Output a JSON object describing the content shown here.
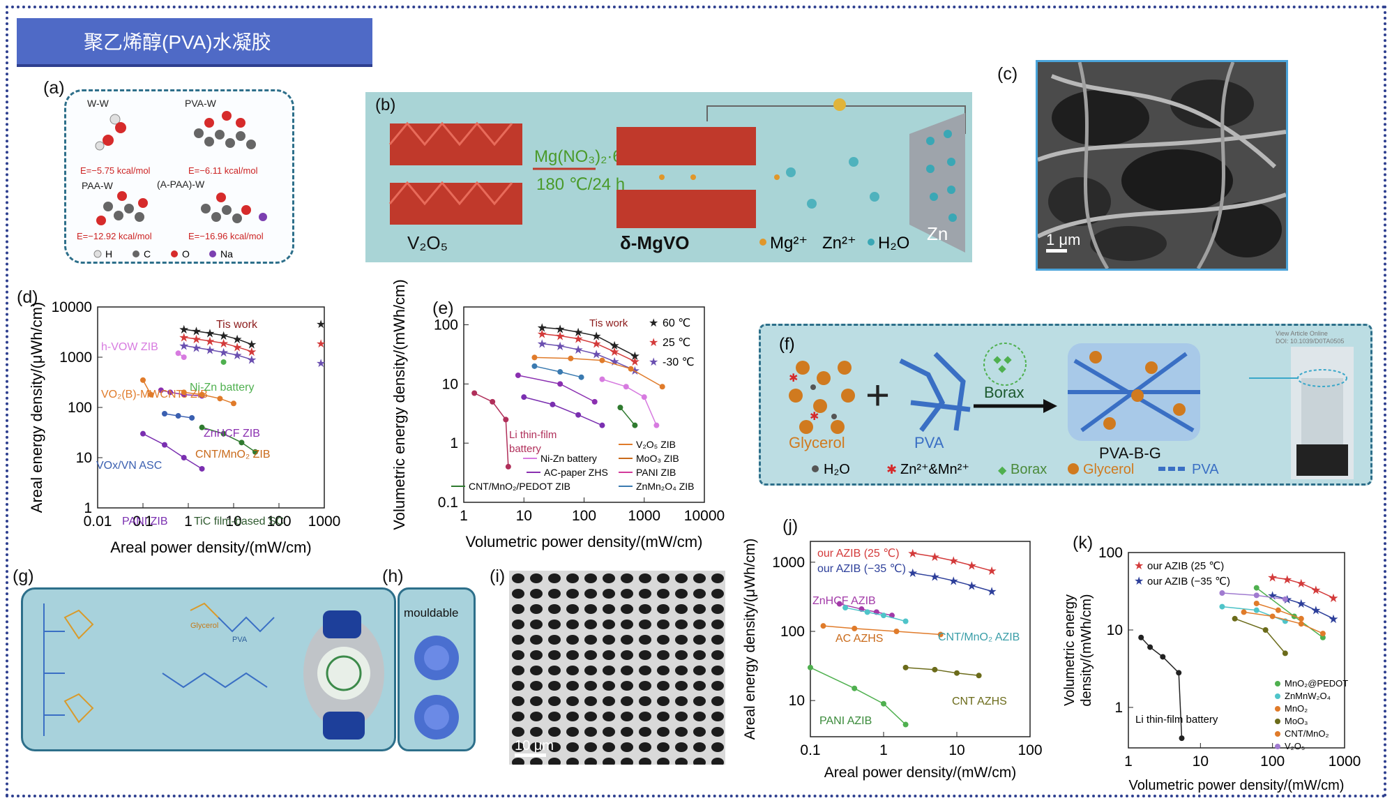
{
  "banner": {
    "title": "聚乙烯醇(PVA)水凝胶"
  },
  "panels": {
    "a": {
      "label": "(a)",
      "ww": "W-W",
      "pvaw": "PVA-W",
      "paaw": "PAA-W",
      "apaaw": "(A-PAA)-W",
      "e1": "E=−5.75 kcal/mol",
      "e2": "E=−6.11 kcal/mol",
      "e3": "E=−12.92 kcal/mol",
      "e4": "E=−16.96 kcal/mol",
      "legend": [
        "H",
        "C",
        "O",
        "Na"
      ]
    },
    "b": {
      "label": "(b)",
      "reagent": "Mg(NO₃)₂·6H₂O",
      "cond": "180 ℃/24 h",
      "v2o5": "V₂O₅",
      "mgvo": "δ-MgVO",
      "mg": "Mg²⁺",
      "zn2": "Zn²⁺",
      "h2o": "H₂O",
      "zn": "Zn"
    },
    "c": {
      "label": "(c)",
      "scale": "1 μm"
    },
    "d": {
      "label": "(d)",
      "ylabel": "Areal energy density/(μWh/cm)",
      "xlabel": "Areal power density/(mW/cm)",
      "xticks": [
        "0.01",
        "0.1",
        "1",
        "10",
        "100",
        "1000"
      ],
      "yticks": [
        "1",
        "10",
        "100",
        "1000",
        "10000"
      ],
      "annotations": [
        "Tis work",
        "h-VOW ZIB",
        "VO₂(B)-MWCNTs ZIB",
        "Ni-Zn battery",
        "ZnHCF ZIB",
        "CNT/MnO₂ ZIB",
        "VOx/VN ASC",
        "PANI ZIB",
        "TiC film-based SC"
      ]
    },
    "e": {
      "label": "(e)",
      "ylabel": "Volumetric energy density/(mWh/cm)",
      "xlabel": "Volumetric power density/(mW/cm)",
      "xticks": [
        "1",
        "10",
        "100",
        "1000",
        "10000"
      ],
      "yticks": [
        "0.1",
        "1",
        "10",
        "100"
      ],
      "legend_top": [
        "60 ℃",
        "25 ℃",
        "-30 ℃"
      ],
      "tiswork": "Tis work",
      "lithin": "Li thin-film",
      "lithin2": "battery",
      "legend_bottom": [
        "Ni-Zn battery",
        "AC-paper ZHS",
        "CNT/MnO₂/PEDOT ZIB",
        "V₂O₅ ZIB",
        "MoO₃ ZIB",
        "PANI ZIB",
        "ZnMn₂O₄ ZIB"
      ]
    },
    "f": {
      "label": "(f)",
      "borax_top": "Borax",
      "glycerol": "Glycerol",
      "pva": "PVA",
      "product": "PVA-B-G",
      "legend": [
        "H₂O",
        "Zn²⁺&Mn²⁺",
        "Borax",
        "Glycerol",
        "PVA"
      ],
      "watermark1": "View Article Online",
      "watermark2": "DOI: 10.1039/D0TA0505"
    },
    "g": {
      "label": "(g)",
      "glycerol": "Glycerol",
      "pva": "PVA"
    },
    "h": {
      "label": "(h)",
      "text": "mouldable"
    },
    "i": {
      "label": "(i)",
      "scale": "10 μm"
    },
    "j": {
      "label": "(j)",
      "ylabel": "Areal energy density/(μWh/cm)",
      "xlabel": "Areal power density/(mW/cm)",
      "xticks": [
        "0.1",
        "1",
        "10",
        "100"
      ],
      "yticks": [
        "10",
        "100",
        "1000"
      ],
      "legend": [
        "our AZIB (25 ℃)",
        "our AZIB (−35 ℃)"
      ],
      "annotations": [
        "ZnHCF AZIB",
        "AC AZHS",
        "CNT/MnO₂ AZIB",
        "CNT AZHS",
        "PANI AZIB"
      ]
    },
    "k": {
      "label": "(k)",
      "ylabel": "Volumetric energy density/(mWh/cm)",
      "ylabel1": "Volumetric energy",
      "ylabel2": "density/(mWh/cm)",
      "xlabel": "Volumetric power density/(mW/cm)",
      "xticks": [
        "1",
        "10",
        "100",
        "1000"
      ],
      "yticks": [
        "1",
        "10",
        "100"
      ],
      "legend": [
        "our AZIB (25 ℃)",
        "our AZIB (−35 ℃)"
      ],
      "legend_bottom": [
        "MnO₂@PEDOT",
        "ZnMnW₂O₄",
        "MnO₂",
        "MoO₃",
        "CNT/MnO₂",
        "V₂O₅"
      ],
      "lithin": "Li thin-film battery"
    }
  },
  "chart_data": [
    {
      "type": "scatter",
      "panel": "d",
      "xlabel": "Areal power density/(mW/cm)",
      "ylabel": "Areal energy density/(μWh/cm)",
      "xscale": "log",
      "yscale": "log",
      "xlim": [
        0.01,
        1000
      ],
      "ylim": [
        1,
        10000
      ],
      "series": [
        {
          "color": "#222222",
          "x": [
            0.8,
            1.5,
            3,
            6,
            12,
            25
          ],
          "y": [
            3600,
            3300,
            3000,
            2700,
            2300,
            1800
          ]
        },
        {
          "color": "#d33a3a",
          "x": [
            0.8,
            1.5,
            3,
            6,
            12,
            25
          ],
          "y": [
            2500,
            2300,
            2100,
            1900,
            1600,
            1300
          ]
        },
        {
          "color": "#6a4fb0",
          "x": [
            0.8,
            1.5,
            3,
            6,
            12,
            25
          ],
          "y": [
            1700,
            1550,
            1400,
            1250,
            1100,
            900
          ]
        },
        {
          "color": "#d77be0",
          "x": [
            0.6,
            0.8
          ],
          "y": [
            1200,
            1000
          ]
        },
        {
          "color": "#e07b2a",
          "x": [
            0.1,
            0.15
          ],
          "y": [
            350,
            180
          ]
        },
        {
          "color": "#4fb04f",
          "x": [
            6
          ],
          "y": [
            800
          ]
        },
        {
          "color": "#8a2fb0",
          "x": [
            0.25,
            0.4,
            0.8,
            2
          ],
          "y": [
            220,
            200,
            180,
            170
          ]
        },
        {
          "color": "#e07b2a",
          "x": [
            0.8,
            2,
            5,
            10
          ],
          "y": [
            200,
            180,
            150,
            120
          ]
        },
        {
          "color": "#3a5fb0",
          "x": [
            0.3,
            0.6,
            1.2
          ],
          "y": [
            75,
            68,
            62
          ]
        },
        {
          "color": "#2f7a2f",
          "x": [
            2,
            6,
            15,
            30
          ],
          "y": [
            40,
            30,
            20,
            13
          ]
        },
        {
          "color": "#7a2fb0",
          "x": [
            0.1,
            0.3,
            0.8,
            2
          ],
          "y": [
            30,
            18,
            10,
            6
          ]
        }
      ]
    },
    {
      "type": "scatter",
      "panel": "e",
      "xlabel": "Volumetric power density/(mW/cm)",
      "ylabel": "Volumetric energy density/(mWh/cm)",
      "xscale": "log",
      "yscale": "log",
      "xlim": [
        1,
        10000
      ],
      "ylim": [
        0.1,
        200
      ],
      "series": [
        {
          "name": "60 ℃",
          "color": "#222222",
          "x": [
            20,
            40,
            80,
            160,
            320,
            700
          ],
          "y": [
            90,
            85,
            75,
            65,
            45,
            30
          ]
        },
        {
          "name": "25 ℃",
          "color": "#d33a3a",
          "x": [
            20,
            40,
            80,
            160,
            320,
            700
          ],
          "y": [
            70,
            65,
            58,
            48,
            35,
            24
          ]
        },
        {
          "name": "-30 ℃",
          "color": "#6a4fb0",
          "x": [
            20,
            40,
            80,
            160,
            320,
            700
          ],
          "y": [
            48,
            44,
            38,
            32,
            24,
            17
          ]
        },
        {
          "color": "#d77be0",
          "x": [
            200,
            500,
            1000,
            1600
          ],
          "y": [
            12,
            9,
            6,
            2
          ]
        },
        {
          "color": "#b02f5a",
          "x": [
            1.5,
            3,
            5,
            5.5
          ],
          "y": [
            7,
            5,
            2.5,
            0.4
          ]
        },
        {
          "color": "#e07b2a",
          "x": [
            15,
            60,
            200,
            600,
            2000
          ],
          "y": [
            28,
            27,
            25,
            18,
            9
          ]
        },
        {
          "color": "#8a2fb0",
          "x": [
            8,
            40,
            150
          ],
          "y": [
            14,
            10,
            5
          ]
        },
        {
          "color": "#3a7ab0",
          "x": [
            15,
            40,
            90
          ],
          "y": [
            20,
            16,
            13
          ]
        },
        {
          "color": "#2f7a2f",
          "x": [
            400,
            700
          ],
          "y": [
            4,
            2
          ]
        },
        {
          "color": "#7a2fb0",
          "x": [
            10,
            30,
            80,
            200
          ],
          "y": [
            6,
            4.5,
            3,
            2
          ]
        }
      ]
    },
    {
      "type": "scatter",
      "panel": "j",
      "xlabel": "Areal power density/(mW/cm)",
      "ylabel": "Areal energy density/(μWh/cm)",
      "xscale": "log",
      "yscale": "log",
      "xlim": [
        0.1,
        100
      ],
      "ylim": [
        3,
        2000
      ],
      "series": [
        {
          "name": "our AZIB (25 ℃)",
          "color": "#d33a3a",
          "x": [
            2.5,
            5,
            9,
            16,
            30
          ],
          "y": [
            1350,
            1200,
            1050,
            900,
            750
          ]
        },
        {
          "name": "our AZIB (−35 ℃)",
          "color": "#2d3f9a",
          "x": [
            2.5,
            5,
            9,
            16,
            30
          ],
          "y": [
            700,
            620,
            540,
            460,
            380
          ]
        },
        {
          "color": "#a23aa8",
          "x": [
            0.25,
            0.5,
            0.8,
            1.3
          ],
          "y": [
            250,
            210,
            190,
            170
          ]
        },
        {
          "color": "#4fc4c9",
          "x": [
            0.3,
            0.6,
            1,
            2
          ],
          "y": [
            220,
            190,
            170,
            140
          ]
        },
        {
          "color": "#e07b2a",
          "x": [
            0.15,
            0.4,
            1.5,
            6
          ],
          "y": [
            120,
            110,
            100,
            90
          ]
        },
        {
          "color": "#6b6b1a",
          "x": [
            2,
            5,
            10,
            20
          ],
          "y": [
            30,
            28,
            25,
            23
          ]
        },
        {
          "color": "#4fb04f",
          "x": [
            0.1,
            0.4,
            1,
            2
          ],
          "y": [
            30,
            15,
            9,
            4.5
          ]
        }
      ]
    },
    {
      "type": "scatter",
      "panel": "k",
      "xlabel": "Volumetric power density/(mW/cm)",
      "ylabel": "Volumetric energy density/(mWh/cm)",
      "xscale": "log",
      "yscale": "log",
      "xlim": [
        1,
        1000
      ],
      "ylim": [
        0.3,
        100
      ],
      "series": [
        {
          "name": "our AZIB (25 ℃)",
          "color": "#d33a3a",
          "x": [
            100,
            160,
            250,
            400,
            700
          ],
          "y": [
            48,
            45,
            40,
            33,
            26
          ]
        },
        {
          "name": "our AZIB (−35 ℃)",
          "color": "#2d3f9a",
          "x": [
            100,
            160,
            250,
            400,
            700
          ],
          "y": [
            28,
            25,
            22,
            18,
            14
          ]
        },
        {
          "name": "MnO₂@PEDOT",
          "color": "#4fb04f",
          "x": [
            60,
            200,
            500
          ],
          "y": [
            35,
            15,
            8
          ]
        },
        {
          "name": "ZnMnW₂O₄",
          "color": "#4fc4c9",
          "x": [
            20,
            60,
            150
          ],
          "y": [
            20,
            18,
            13
          ]
        },
        {
          "name": "MnO₂",
          "color": "#e07b2a",
          "x": [
            40,
            100,
            250,
            500
          ],
          "y": [
            17,
            15,
            12,
            9
          ]
        },
        {
          "name": "MoO₃",
          "color": "#6b6b1a",
          "x": [
            30,
            80,
            150
          ],
          "y": [
            14,
            10,
            5
          ]
        },
        {
          "name": "CNT/MnO₂",
          "color": "#e07b2a",
          "x": [
            60,
            120,
            250
          ],
          "y": [
            22,
            18,
            14
          ]
        },
        {
          "name": "V₂O₅",
          "color": "#a07bd0",
          "x": [
            20,
            60,
            150
          ],
          "y": [
            30,
            28,
            25
          ]
        },
        {
          "name": "Li thin-film battery",
          "color": "#222222",
          "x": [
            1.5,
            2,
            3,
            5,
            5.5
          ],
          "y": [
            8,
            6,
            4.5,
            2.8,
            0.4
          ]
        }
      ]
    }
  ]
}
